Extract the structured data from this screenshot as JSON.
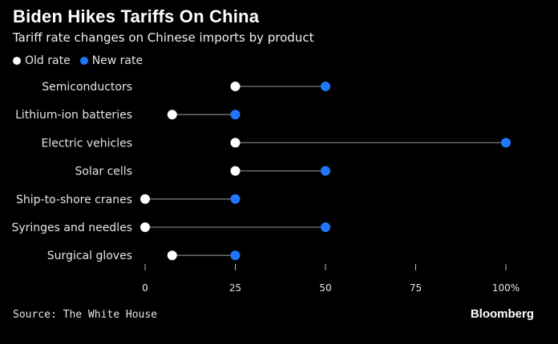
{
  "chart_data": {
    "type": "dumbbell",
    "title": "Biden Hikes Tariffs On China",
    "subtitle": "Tariff rate changes on Chinese imports by product",
    "legend": [
      {
        "name": "Old rate",
        "color": "#ffffff"
      },
      {
        "name": "New rate",
        "color": "#1f77ff"
      }
    ],
    "categories": [
      "Semiconductors",
      "Lithium-ion batteries",
      "Electric vehicles",
      "Solar cells",
      "Ship-to-shore cranes",
      "Syringes and needles",
      "Surgical gloves"
    ],
    "series": [
      {
        "name": "Old rate",
        "values": [
          25,
          7.5,
          25,
          25,
          0,
          0,
          7.5
        ]
      },
      {
        "name": "New rate",
        "values": [
          50,
          25,
          100,
          50,
          25,
          50,
          25
        ]
      }
    ],
    "xlim": [
      0,
      100
    ],
    "xticks": [
      0,
      25,
      50,
      75,
      100
    ],
    "xtick_labels": [
      "0",
      "25",
      "50",
      "75",
      "100%"
    ],
    "xlabel": "",
    "ylabel": "",
    "grid": false
  },
  "footer": {
    "source": "Source: The White House",
    "brand": "Bloomberg"
  }
}
